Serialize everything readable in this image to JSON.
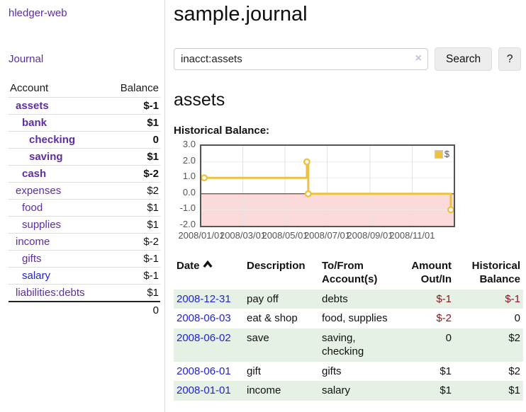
{
  "app": {
    "brand": "hledger-web",
    "nav_journal": "Journal"
  },
  "sidebar": {
    "header": {
      "account": "Account",
      "balance": "Balance"
    },
    "accounts": [
      {
        "name": "assets",
        "balance": "$-1",
        "level": 1,
        "bold": true,
        "name_style": "plink",
        "balance_style": "neg"
      },
      {
        "name": "bank",
        "balance": "$1",
        "level": 2,
        "bold": true,
        "name_style": "plink",
        "balance_style": ""
      },
      {
        "name": "checking",
        "balance": "0",
        "level": 3,
        "bold": true,
        "name_style": "plink",
        "balance_style": ""
      },
      {
        "name": "saving",
        "balance": "$1",
        "level": 3,
        "bold": true,
        "name_style": "plink",
        "balance_style": ""
      },
      {
        "name": "cash",
        "balance": "$-2",
        "level": 2,
        "bold": true,
        "name_style": "plink",
        "balance_style": "neg"
      },
      {
        "name": "expenses",
        "balance": "$2",
        "level": 1,
        "bold": false,
        "name_style": "plink",
        "balance_style": ""
      },
      {
        "name": "food",
        "balance": "$1",
        "level": 2,
        "bold": false,
        "name_style": "plink",
        "balance_style": ""
      },
      {
        "name": "supplies",
        "balance": "$1",
        "level": 2,
        "bold": false,
        "name_style": "plink",
        "balance_style": ""
      },
      {
        "name": "income",
        "balance": "$-2",
        "level": 1,
        "bold": false,
        "name_style": "plink",
        "balance_style": "neg-muted"
      },
      {
        "name": "gifts",
        "balance": "$-1",
        "level": 2,
        "bold": false,
        "name_style": "plink",
        "balance_style": "neg-muted"
      },
      {
        "name": "salary",
        "balance": "$-1",
        "level": 2,
        "bold": false,
        "name_style": "blink",
        "balance_style": "neg-muted"
      },
      {
        "name": "liabilities:debts",
        "balance": "$1",
        "level": 1,
        "bold": false,
        "name_style": "plink",
        "balance_style": ""
      }
    ],
    "total": "0"
  },
  "header": {
    "title": "sample.journal"
  },
  "search": {
    "query": "inacct:assets",
    "clear_icon": "×",
    "button": "Search",
    "help_button": "?"
  },
  "main": {
    "account_title": "assets",
    "chart_label": "Historical Balance:"
  },
  "chart_data": {
    "type": "line",
    "step": true,
    "title": "Historical Balance",
    "legend": "$",
    "legend_position": "top-right",
    "grid": true,
    "x_range": [
      "2008-01-01",
      "2008-12-31"
    ],
    "ylim": [
      -2.0,
      3.0
    ],
    "y_ticks": [
      "3.0",
      "2.0",
      "1.0",
      "0.0",
      "-1.0",
      "-2.0"
    ],
    "x_ticks": [
      {
        "label": "2008/01/01",
        "date": "2008-01-01"
      },
      {
        "label": "2008/03/01",
        "date": "2008-03-01"
      },
      {
        "label": "2008/05/01",
        "date": "2008-05-01"
      },
      {
        "label": "2008/07/01",
        "date": "2008-07-01"
      },
      {
        "label": "2008/09/01",
        "date": "2008-09-01"
      },
      {
        "label": "2008/11/01",
        "date": "2008-11-01"
      }
    ],
    "series": [
      {
        "name": "$",
        "points": [
          {
            "date": "2008-01-01",
            "value": 1.0
          },
          {
            "date": "2008-06-01",
            "value": 2.0
          },
          {
            "date": "2008-06-03",
            "value": 0.0
          },
          {
            "date": "2008-12-31",
            "value": -1.0
          }
        ]
      }
    ],
    "colors": {
      "line": "#edc240",
      "marker_fill": "#ffffff",
      "border": "#545454",
      "grid_v": "#e2e2e2",
      "grid_h": "#ececec",
      "zero_line": "#8b0000",
      "negative_region": "#fbdada",
      "tick_text": "#545454"
    }
  },
  "register": {
    "headers": [
      "Date",
      "Description",
      "To/From Account(s)",
      "Amount Out/In",
      "Historical Balance"
    ],
    "sort_column": "Date",
    "sort_direction": "ascending",
    "rows": [
      {
        "date": "2008-12-31",
        "description": "pay off",
        "accounts": "debts",
        "amount": "$-1",
        "amount_style": "neg",
        "balance": "$-1",
        "balance_style": "neg",
        "shaded": true
      },
      {
        "date": "2008-06-03",
        "description": "eat & shop",
        "accounts": "food, supplies",
        "amount": "$-2",
        "amount_style": "neg",
        "balance": "0",
        "balance_style": "",
        "shaded": false
      },
      {
        "date": "2008-06-02",
        "description": "save",
        "accounts": "saving, checking",
        "amount": "0",
        "amount_style": "",
        "balance": "$2",
        "balance_style": "",
        "shaded": true
      },
      {
        "date": "2008-06-01",
        "description": "gift",
        "accounts": "gifts",
        "amount": "$1",
        "amount_style": "",
        "balance": "$2",
        "balance_style": "",
        "shaded": false
      },
      {
        "date": "2008-01-01",
        "description": "income",
        "accounts": "salary",
        "amount": "$1",
        "amount_style": "",
        "balance": "$1",
        "balance_style": "",
        "shaded": true
      }
    ]
  }
}
